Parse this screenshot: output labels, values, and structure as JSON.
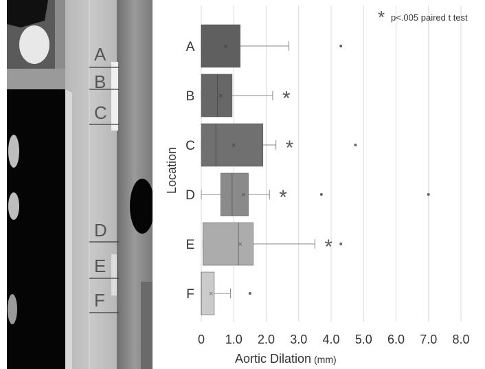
{
  "ct_image": {
    "segment_labels": [
      "A",
      "B",
      "C",
      "D",
      "E",
      "F"
    ]
  },
  "chart_data": {
    "type": "boxplot",
    "orientation": "horizontal",
    "xlabel": "Aortic Dilation",
    "xlabel_unit": "(mm)",
    "ylabel": "Location",
    "xlim": [
      0,
      8.0
    ],
    "xticks": [
      "0",
      "1.0",
      "2.0",
      "3.0",
      "4.0",
      "5.0",
      "6.0",
      "7.0",
      "8.0"
    ],
    "grid": "vertical",
    "legend": {
      "symbol": "*",
      "text": "p<.005 paired t test",
      "placement": "top-right"
    },
    "colors": {
      "A": "#5f5f5f",
      "B": "#676767",
      "C": "#707070",
      "D": "#8a8a8a",
      "E": "#acacac",
      "F": "#cbcbcb"
    },
    "boxes": [
      {
        "category": "A",
        "min": 0.0,
        "q1": 0.0,
        "median": 0.0,
        "q3": 1.2,
        "max": 2.7,
        "mean": 0.75,
        "outliers": [
          4.3
        ],
        "significant": false
      },
      {
        "category": "B",
        "min": 0.0,
        "q1": 0.0,
        "median": 0.5,
        "q3": 0.95,
        "max": 2.2,
        "mean": 0.6,
        "outliers": [],
        "significant": true
      },
      {
        "category": "C",
        "min": 0.0,
        "q1": 0.0,
        "median": 0.45,
        "q3": 1.9,
        "max": 2.3,
        "mean": 1.0,
        "outliers": [
          4.75
        ],
        "significant": true
      },
      {
        "category": "D",
        "min": 0.0,
        "q1": 0.6,
        "median": 0.95,
        "q3": 1.45,
        "max": 2.1,
        "mean": 1.3,
        "outliers": [
          3.7,
          7.0
        ],
        "significant": true
      },
      {
        "category": "E",
        "min": 0.05,
        "q1": 0.05,
        "median": 1.15,
        "q3": 1.6,
        "max": 3.5,
        "mean": 1.2,
        "outliers": [
          4.3
        ],
        "significant": true
      },
      {
        "category": "F",
        "min": 0.0,
        "q1": 0.0,
        "median": 0.0,
        "q3": 0.4,
        "max": 0.9,
        "mean": 0.3,
        "outliers": [
          1.5
        ],
        "significant": false
      }
    ]
  }
}
